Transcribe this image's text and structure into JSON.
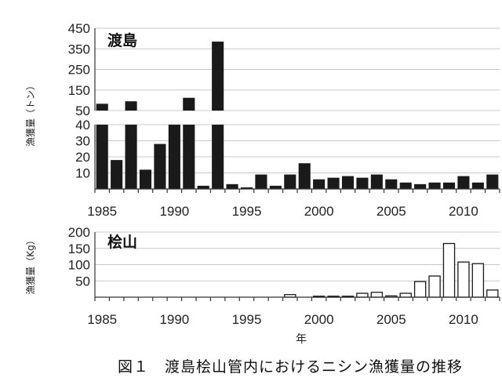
{
  "caption": "図１　渡島桧山管内におけるニシン漁獲量の推移",
  "chart_data": [
    {
      "type": "bar",
      "panel": "渡島",
      "ylabel": "漁獲量（トン）",
      "xlabel": "",
      "broken_axis": true,
      "upper_ylim": [
        50,
        450
      ],
      "upper_ticks": [
        50,
        150,
        250,
        350,
        450
      ],
      "lower_ylim": [
        0,
        40
      ],
      "lower_ticks": [
        10,
        20,
        30,
        40
      ],
      "x_ticks": [
        1985,
        1990,
        1995,
        2000,
        2005,
        2010
      ],
      "bar_color": "#1a1a1a",
      "x": [
        1985,
        1986,
        1987,
        1988,
        1989,
        1990,
        1991,
        1992,
        1993,
        1994,
        1995,
        1996,
        1997,
        1998,
        1999,
        2000,
        2001,
        2002,
        2003,
        2004,
        2005,
        2006,
        2007,
        2008,
        2009,
        2010,
        2011,
        2012
      ],
      "values": [
        83,
        18,
        95,
        12,
        28,
        40,
        112,
        2,
        385,
        3,
        1,
        9,
        2,
        9,
        16,
        6,
        7,
        8,
        7,
        9,
        6,
        4,
        3,
        4,
        4,
        8,
        4,
        9
      ]
    },
    {
      "type": "bar",
      "panel": "桧山",
      "ylabel": "漁獲量（Kg）",
      "xlabel": "年",
      "ylim": [
        0,
        200
      ],
      "y_ticks": [
        50,
        100,
        150,
        200
      ],
      "x_ticks": [
        1985,
        1990,
        1995,
        2000,
        2005,
        2010
      ],
      "bar_color": "#ffffff",
      "bar_stroke": "#1a1a1a",
      "x": [
        1985,
        1986,
        1987,
        1988,
        1989,
        1990,
        1991,
        1992,
        1993,
        1994,
        1995,
        1996,
        1997,
        1998,
        1999,
        2000,
        2001,
        2002,
        2003,
        2004,
        2005,
        2006,
        2007,
        2008,
        2009,
        2010,
        2011,
        2012
      ],
      "values": [
        0,
        0,
        0,
        0,
        0,
        0,
        0,
        0,
        0,
        0,
        0,
        0,
        0,
        8,
        0,
        3,
        3,
        3,
        12,
        15,
        4,
        12,
        48,
        65,
        165,
        108,
        103,
        22
      ]
    }
  ]
}
